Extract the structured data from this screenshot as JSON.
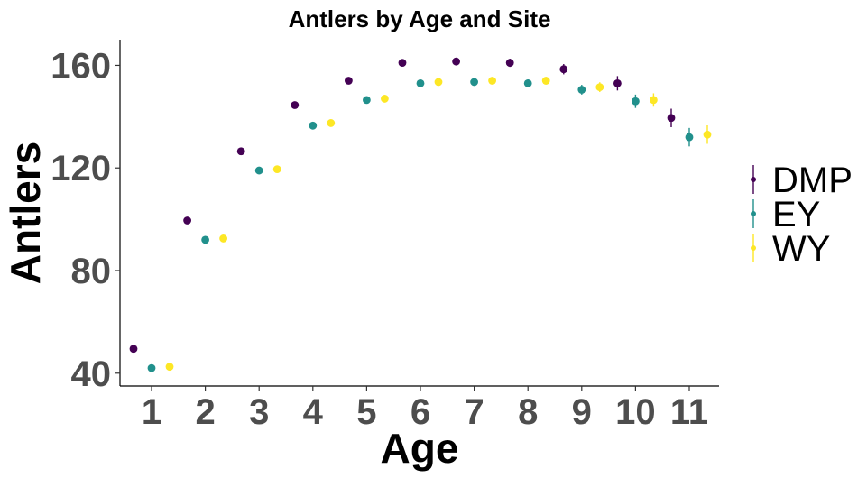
{
  "chart_data": {
    "type": "scatter",
    "title": "Antlers by Age and Site",
    "xlabel": "Age",
    "ylabel": "Antlers",
    "x_categories": [
      "1",
      "2",
      "3",
      "4",
      "5",
      "6",
      "7",
      "8",
      "9",
      "10",
      "11"
    ],
    "yticks": [
      40,
      80,
      120,
      160
    ],
    "ylim": [
      35,
      170
    ],
    "grid": false,
    "legend_position": "right",
    "series": [
      {
        "name": "DMP",
        "color": "#440154",
        "values": [
          49.5,
          99.5,
          126.5,
          144.5,
          154.0,
          161.0,
          161.5,
          161.0,
          158.5,
          153.0,
          139.5
        ],
        "errors": [
          0.8,
          0.8,
          0.9,
          1.0,
          1.2,
          1.3,
          1.4,
          1.6,
          2.0,
          2.8,
          3.6
        ]
      },
      {
        "name": "EY",
        "color": "#21908C",
        "values": [
          42.0,
          92.0,
          119.0,
          136.5,
          146.5,
          153.0,
          153.5,
          153.0,
          150.5,
          146.0,
          132.0
        ],
        "errors": [
          0.8,
          0.8,
          0.9,
          1.0,
          1.1,
          1.2,
          1.3,
          1.5,
          1.9,
          2.6,
          3.6
        ]
      },
      {
        "name": "WY",
        "color": "#FDE725",
        "values": [
          42.5,
          92.5,
          119.5,
          137.5,
          147.0,
          153.5,
          154.0,
          154.0,
          151.5,
          146.5,
          133.0
        ],
        "errors": [
          0.8,
          0.8,
          0.9,
          1.0,
          1.1,
          1.2,
          1.3,
          1.5,
          1.9,
          2.6,
          3.6
        ]
      }
    ]
  }
}
